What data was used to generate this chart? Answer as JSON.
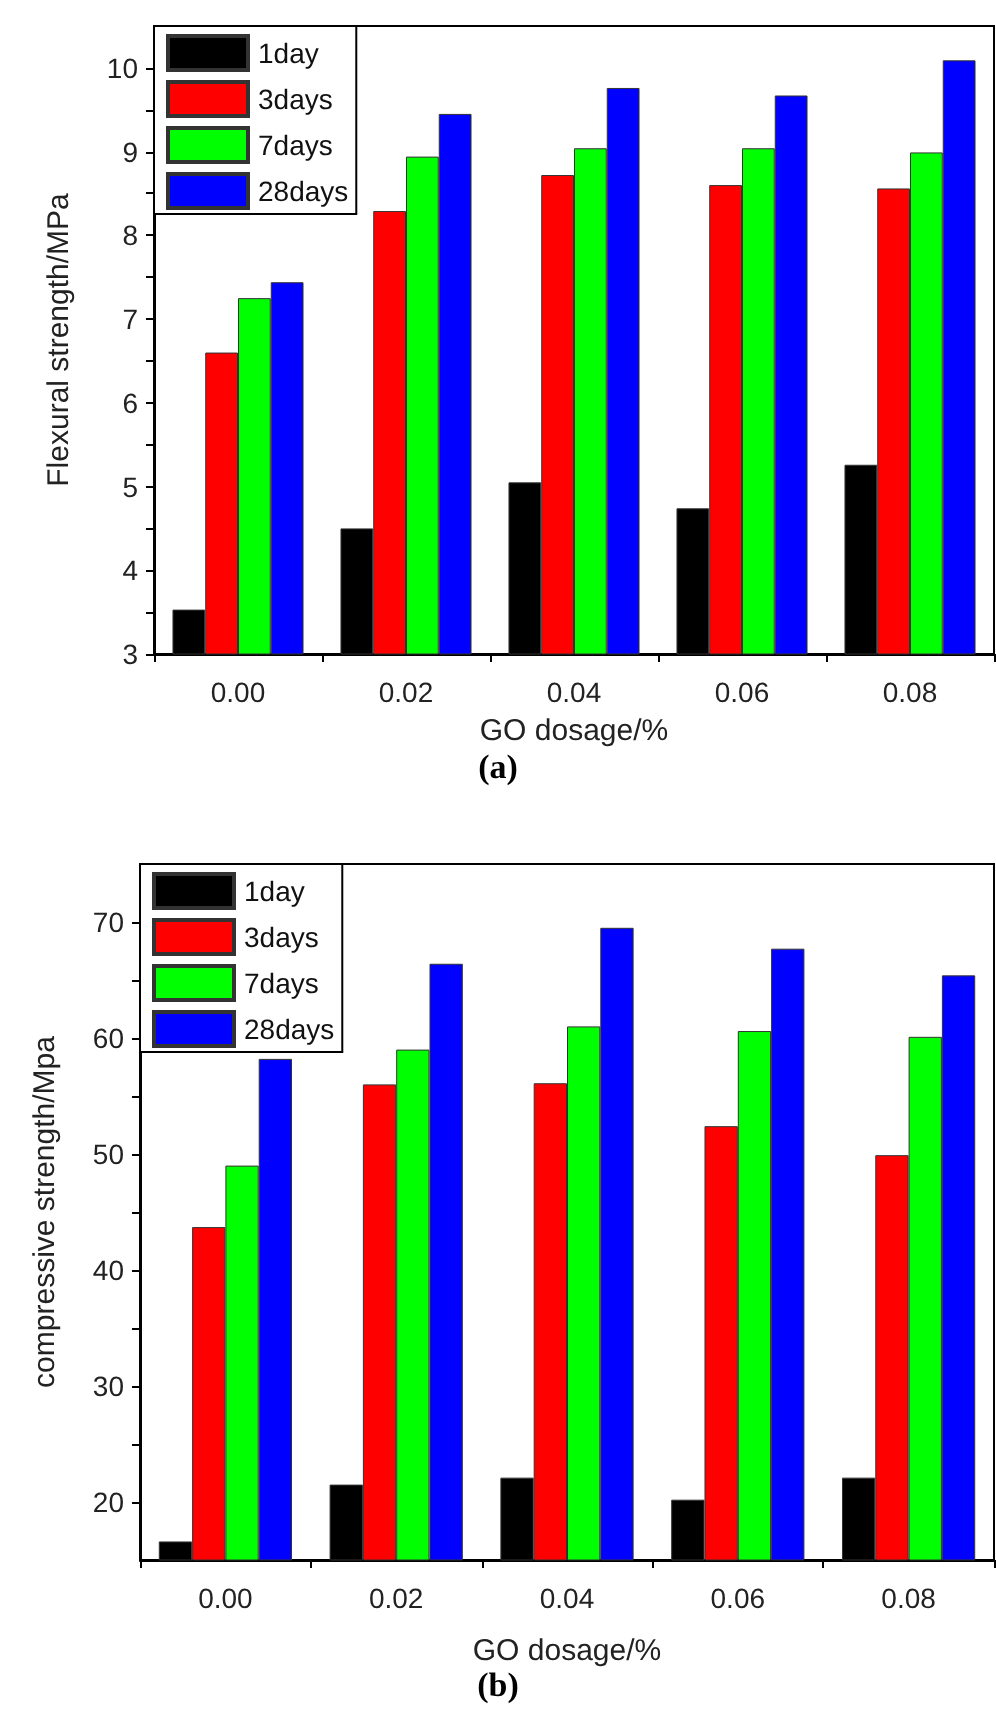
{
  "chart_data": [
    {
      "type": "bar",
      "categories": [
        "0.00",
        "0.02",
        "0.04",
        "0.06",
        "0.08"
      ],
      "xlabel": "GO dosage/%",
      "ylabel": "Flexural strength/MPa",
      "ylim": [
        3,
        10.5
      ],
      "yticks": [
        3,
        {
          "value": 3.5,
          "label": null
        },
        4,
        {
          "value": 4.5,
          "label": null
        },
        5,
        {
          "value": 5.5,
          "label": null
        },
        6,
        {
          "value": 6.5,
          "label": null
        },
        7,
        {
          "value": 7.5,
          "label": null
        },
        8,
        {
          "value": 8.5,
          "label": null
        },
        9,
        {
          "value": 9.5,
          "label": null
        },
        10
      ],
      "legend": "top left",
      "grid": false,
      "annotations": [
        "(a)"
      ],
      "series": [
        {
          "name": "1day",
          "color": "#000000",
          "values": [
            3.53,
            4.5,
            5.05,
            4.74,
            5.26
          ]
        },
        {
          "name": "3days",
          "color": "#ff0000",
          "values": [
            6.6,
            8.29,
            8.72,
            8.6,
            8.56
          ]
        },
        {
          "name": "7days",
          "color": "#00ff00",
          "values": [
            7.25,
            8.94,
            9.04,
            9.04,
            8.99
          ]
        },
        {
          "name": "28days",
          "color": "#0000ff",
          "values": [
            7.44,
            9.45,
            9.76,
            9.67,
            10.09
          ]
        }
      ]
    },
    {
      "type": "bar",
      "categories": [
        "0.00",
        "0.02",
        "0.04",
        "0.06",
        "0.08"
      ],
      "xlabel": "GO dosage/%",
      "ylabel": "compressive strength/Mpa",
      "ylim": [
        15,
        75
      ],
      "yticks": [
        20,
        {
          "value": 25,
          "label": null
        },
        30,
        {
          "value": 35,
          "label": null
        },
        40,
        {
          "value": 45,
          "label": null
        },
        50,
        {
          "value": 55,
          "label": null
        },
        60,
        {
          "value": 65,
          "label": null
        },
        70
      ],
      "legend": "top left",
      "grid": false,
      "annotations": [
        "(b)"
      ],
      "series": [
        {
          "name": "1day",
          "color": "#000000",
          "values": [
            16.6,
            21.5,
            22.1,
            20.2,
            22.1
          ]
        },
        {
          "name": "3days",
          "color": "#ff0000",
          "values": [
            43.7,
            56.0,
            56.1,
            52.4,
            49.9
          ]
        },
        {
          "name": "7days",
          "color": "#00ff00",
          "values": [
            49.0,
            59.0,
            61.0,
            60.6,
            60.1
          ]
        },
        {
          "name": "28days",
          "color": "#0000ff",
          "values": [
            58.2,
            66.4,
            69.5,
            67.7,
            65.4
          ]
        }
      ]
    }
  ]
}
